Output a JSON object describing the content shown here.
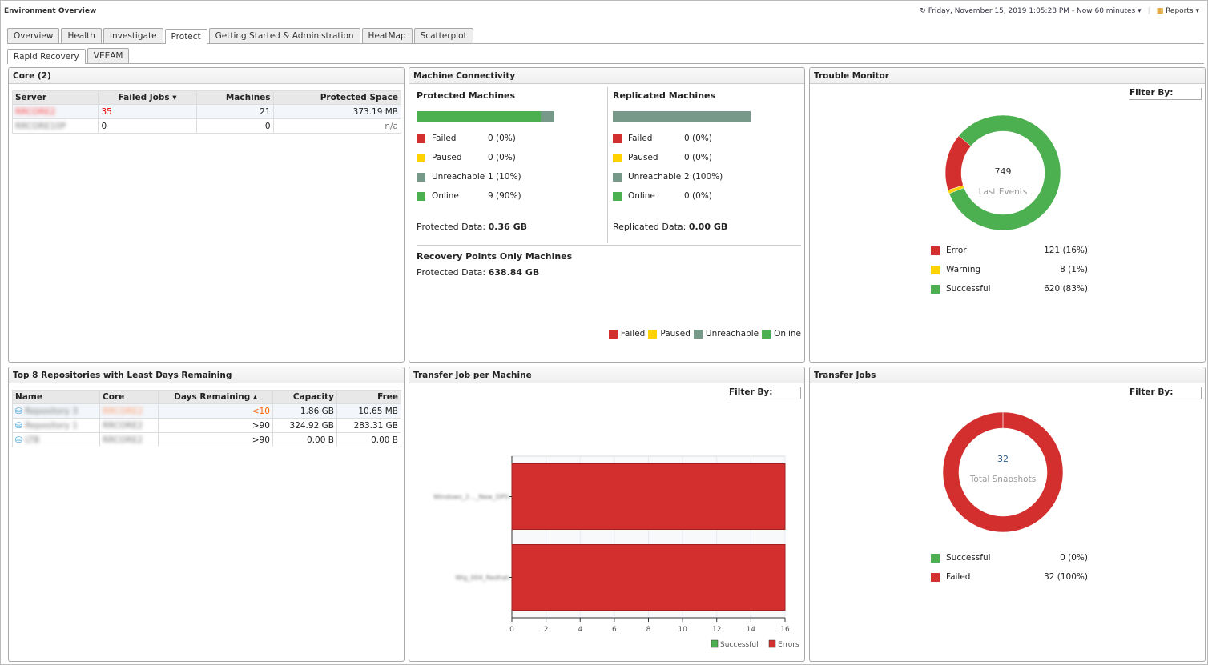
{
  "header": {
    "title": "Environment Overview",
    "time_range": "Friday, November 15, 2019 1:05:28 PM - Now 60 minutes",
    "reports": "Reports"
  },
  "tabs": [
    "Overview",
    "Health",
    "Investigate",
    "Protect",
    "Getting Started & Administration",
    "HeatMap",
    "Scatterplot"
  ],
  "subtabs": [
    "Rapid Recovery",
    "VEEAM"
  ],
  "colors": {
    "failed": "#d32f2f",
    "paused": "#ffd200",
    "unreachable": "#76998a",
    "online": "#4caf50"
  },
  "core": {
    "title": "Core (2)",
    "columns": [
      "Server",
      "Failed Jobs",
      "Machines",
      "Protected Space"
    ],
    "rows": [
      [
        "RRCORE2",
        "35",
        "21",
        "373.19 MB"
      ],
      [
        "RRCORE10P",
        "0",
        "0",
        "n/a"
      ]
    ]
  },
  "connectivity": {
    "title": "Machine Connectivity",
    "protected": {
      "title": "Protected Machines",
      "bar": {
        "online": 90,
        "unreachable": 10
      },
      "items": [
        {
          "label": "Failed",
          "value": "0 (0%)"
        },
        {
          "label": "Paused",
          "value": "0 (0%)"
        },
        {
          "label": "Unreachable",
          "value": "1 (10%)"
        },
        {
          "label": "Online",
          "value": "9 (90%)"
        }
      ],
      "data_label": "Protected Data:",
      "data_value": "0.36 GB"
    },
    "replicated": {
      "title": "Replicated Machines",
      "bar": {
        "online": 0,
        "unreachable": 100
      },
      "items": [
        {
          "label": "Failed",
          "value": "0 (0%)"
        },
        {
          "label": "Paused",
          "value": "0 (0%)"
        },
        {
          "label": "Unreachable",
          "value": "2 (100%)"
        },
        {
          "label": "Online",
          "value": "0 (0%)"
        }
      ],
      "data_label": "Replicated Data:",
      "data_value": "0.00 GB"
    },
    "rpo": {
      "title": "Recovery Points Only Machines",
      "data_label": "Protected Data:",
      "data_value": "638.84 GB"
    },
    "legend": [
      "Failed",
      "Paused",
      "Unreachable",
      "Online"
    ]
  },
  "trouble": {
    "title": "Trouble Monitor",
    "filter": "Filter By:",
    "center_value": "749",
    "center_label": "Last Events",
    "items": [
      {
        "label": "Error",
        "value": "121 (16%)",
        "pct": 16,
        "color": "#d32f2f"
      },
      {
        "label": "Warning",
        "value": "8 (1%)",
        "pct": 1,
        "color": "#ffd200"
      },
      {
        "label": "Successful",
        "value": "620 (83%)",
        "pct": 83,
        "color": "#4caf50"
      }
    ]
  },
  "repos": {
    "title": "Top 8 Repositories with Least Days Remaining",
    "columns": [
      "Name",
      "Core",
      "Days Remaining",
      "Capacity",
      "Free"
    ],
    "rows": [
      [
        "Repository 3",
        "RRCORE2",
        "<10",
        "1.86 GB",
        "10.65 MB"
      ],
      [
        "Repository 1",
        "RRCORE2",
        ">90",
        "324.92 GB",
        "283.31 GB"
      ],
      [
        "LTB",
        "RRCORE2",
        ">90",
        "0.00 B",
        "0.00 B"
      ]
    ]
  },
  "transfer_machine": {
    "title": "Transfer Job per Machine",
    "filter": "Filter By:"
  },
  "chart_data": {
    "type": "bar",
    "orientation": "horizontal",
    "categories": [
      "Windows_2..._New_DPS",
      "Wig_004_Redhat"
    ],
    "series": [
      {
        "name": "Successful",
        "values": [
          0,
          0
        ],
        "color": "#4caf50"
      },
      {
        "name": "Errors",
        "values": [
          16,
          16
        ],
        "color": "#d32f2f"
      }
    ],
    "xlim": [
      0,
      16
    ],
    "xticks": [
      0,
      2,
      4,
      6,
      8,
      10,
      12,
      14,
      16
    ],
    "legend": "bottom-right",
    "grid": true
  },
  "transfer_jobs": {
    "title": "Transfer Jobs",
    "filter": "Filter By:",
    "center_value": "32",
    "center_label": "Total Snapshots",
    "items": [
      {
        "label": "Successful",
        "value": "0 (0%)",
        "pct": 0,
        "color": "#4caf50"
      },
      {
        "label": "Failed",
        "value": "32 (100%)",
        "pct": 100,
        "color": "#d32f2f"
      }
    ]
  }
}
